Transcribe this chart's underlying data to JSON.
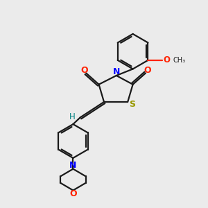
{
  "bg_color": "#ebebeb",
  "bond_color": "#1a1a1a",
  "N_color": "#0000ff",
  "O_color": "#ff2200",
  "S_color": "#999900",
  "H_color": "#008080",
  "figsize": [
    3.0,
    3.0
  ],
  "dpi": 100,
  "xlim": [
    0,
    10
  ],
  "ylim": [
    0,
    10
  ]
}
